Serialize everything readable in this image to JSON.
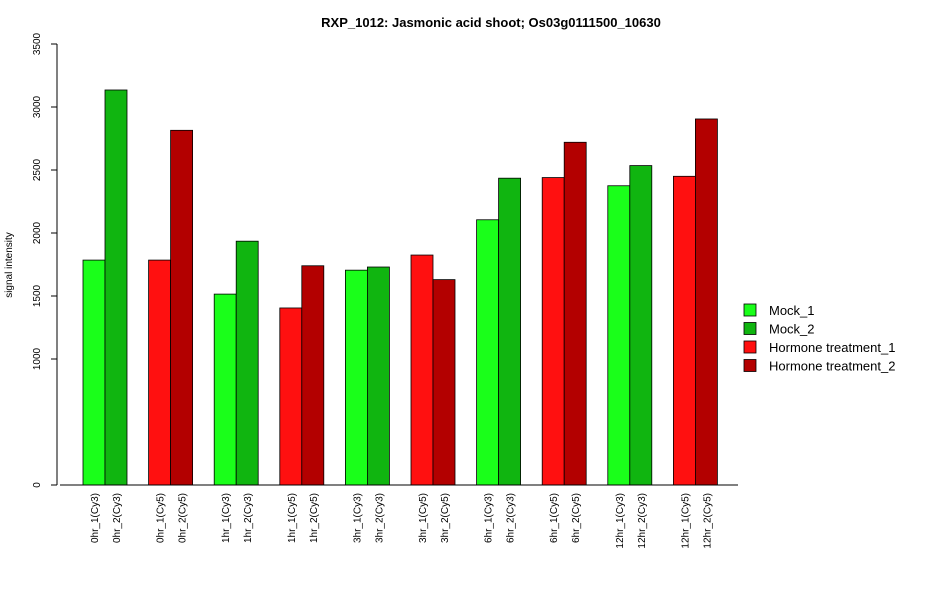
{
  "chart_data": {
    "type": "bar",
    "title": "RXP_1012: Jasmonic acid shoot; Os03g0111500_10630",
    "xlabel": "",
    "ylabel": "signal intensity",
    "y_ticks": [
      0,
      1000,
      1500,
      2000,
      2500,
      3000,
      3500
    ],
    "y_tick_labels": [
      "0",
      "1000",
      "1500",
      "2000",
      "2500",
      "3000",
      "3500"
    ],
    "grid": false,
    "legend_position": "right",
    "legend": [
      {
        "name": "Mock_1",
        "color": "#1aff1a"
      },
      {
        "name": "Mock_2",
        "color": "#10b510"
      },
      {
        "name": "Hormone treatment_1",
        "color": "#ff1010"
      },
      {
        "name": "Hormone treatment_2",
        "color": "#b30000"
      }
    ],
    "groups": [
      {
        "bars": [
          {
            "label": "0hr_1(Cy3)",
            "value": 1785,
            "color": "#1aff1a"
          },
          {
            "label": "0hr_2(Cy3)",
            "value": 3135,
            "color": "#10b510"
          }
        ]
      },
      {
        "bars": [
          {
            "label": "0hr_1(Cy5)",
            "value": 1785,
            "color": "#ff1010"
          },
          {
            "label": "0hr_2(Cy5)",
            "value": 2815,
            "color": "#b30000"
          }
        ]
      },
      {
        "bars": [
          {
            "label": "1hr_1(Cy3)",
            "value": 1515,
            "color": "#1aff1a"
          },
          {
            "label": "1hr_2(Cy3)",
            "value": 1935,
            "color": "#10b510"
          }
        ]
      },
      {
        "bars": [
          {
            "label": "1hr_1(Cy5)",
            "value": 1405,
            "color": "#ff1010"
          },
          {
            "label": "1hr_2(Cy5)",
            "value": 1740,
            "color": "#b30000"
          }
        ]
      },
      {
        "bars": [
          {
            "label": "3hr_1(Cy3)",
            "value": 1705,
            "color": "#1aff1a"
          },
          {
            "label": "3hr_2(Cy3)",
            "value": 1730,
            "color": "#10b510"
          }
        ]
      },
      {
        "bars": [
          {
            "label": "3hr_1(Cy5)",
            "value": 1825,
            "color": "#ff1010"
          },
          {
            "label": "3hr_2(Cy5)",
            "value": 1630,
            "color": "#b30000"
          }
        ]
      },
      {
        "bars": [
          {
            "label": "6hr_1(Cy3)",
            "value": 2105,
            "color": "#1aff1a"
          },
          {
            "label": "6hr_2(Cy3)",
            "value": 2435,
            "color": "#10b510"
          }
        ]
      },
      {
        "bars": [
          {
            "label": "6hr_1(Cy5)",
            "value": 2440,
            "color": "#ff1010"
          },
          {
            "label": "6hr_2(Cy5)",
            "value": 2720,
            "color": "#b30000"
          }
        ]
      },
      {
        "bars": [
          {
            "label": "12hr_1(Cy3)",
            "value": 2375,
            "color": "#1aff1a"
          },
          {
            "label": "12hr_2(Cy3)",
            "value": 2535,
            "color": "#10b510"
          }
        ]
      },
      {
        "bars": [
          {
            "label": "12hr_1(Cy5)",
            "value": 2450,
            "color": "#ff1010"
          },
          {
            "label": "12hr_2(Cy5)",
            "value": 2905,
            "color": "#b30000"
          }
        ]
      }
    ]
  }
}
